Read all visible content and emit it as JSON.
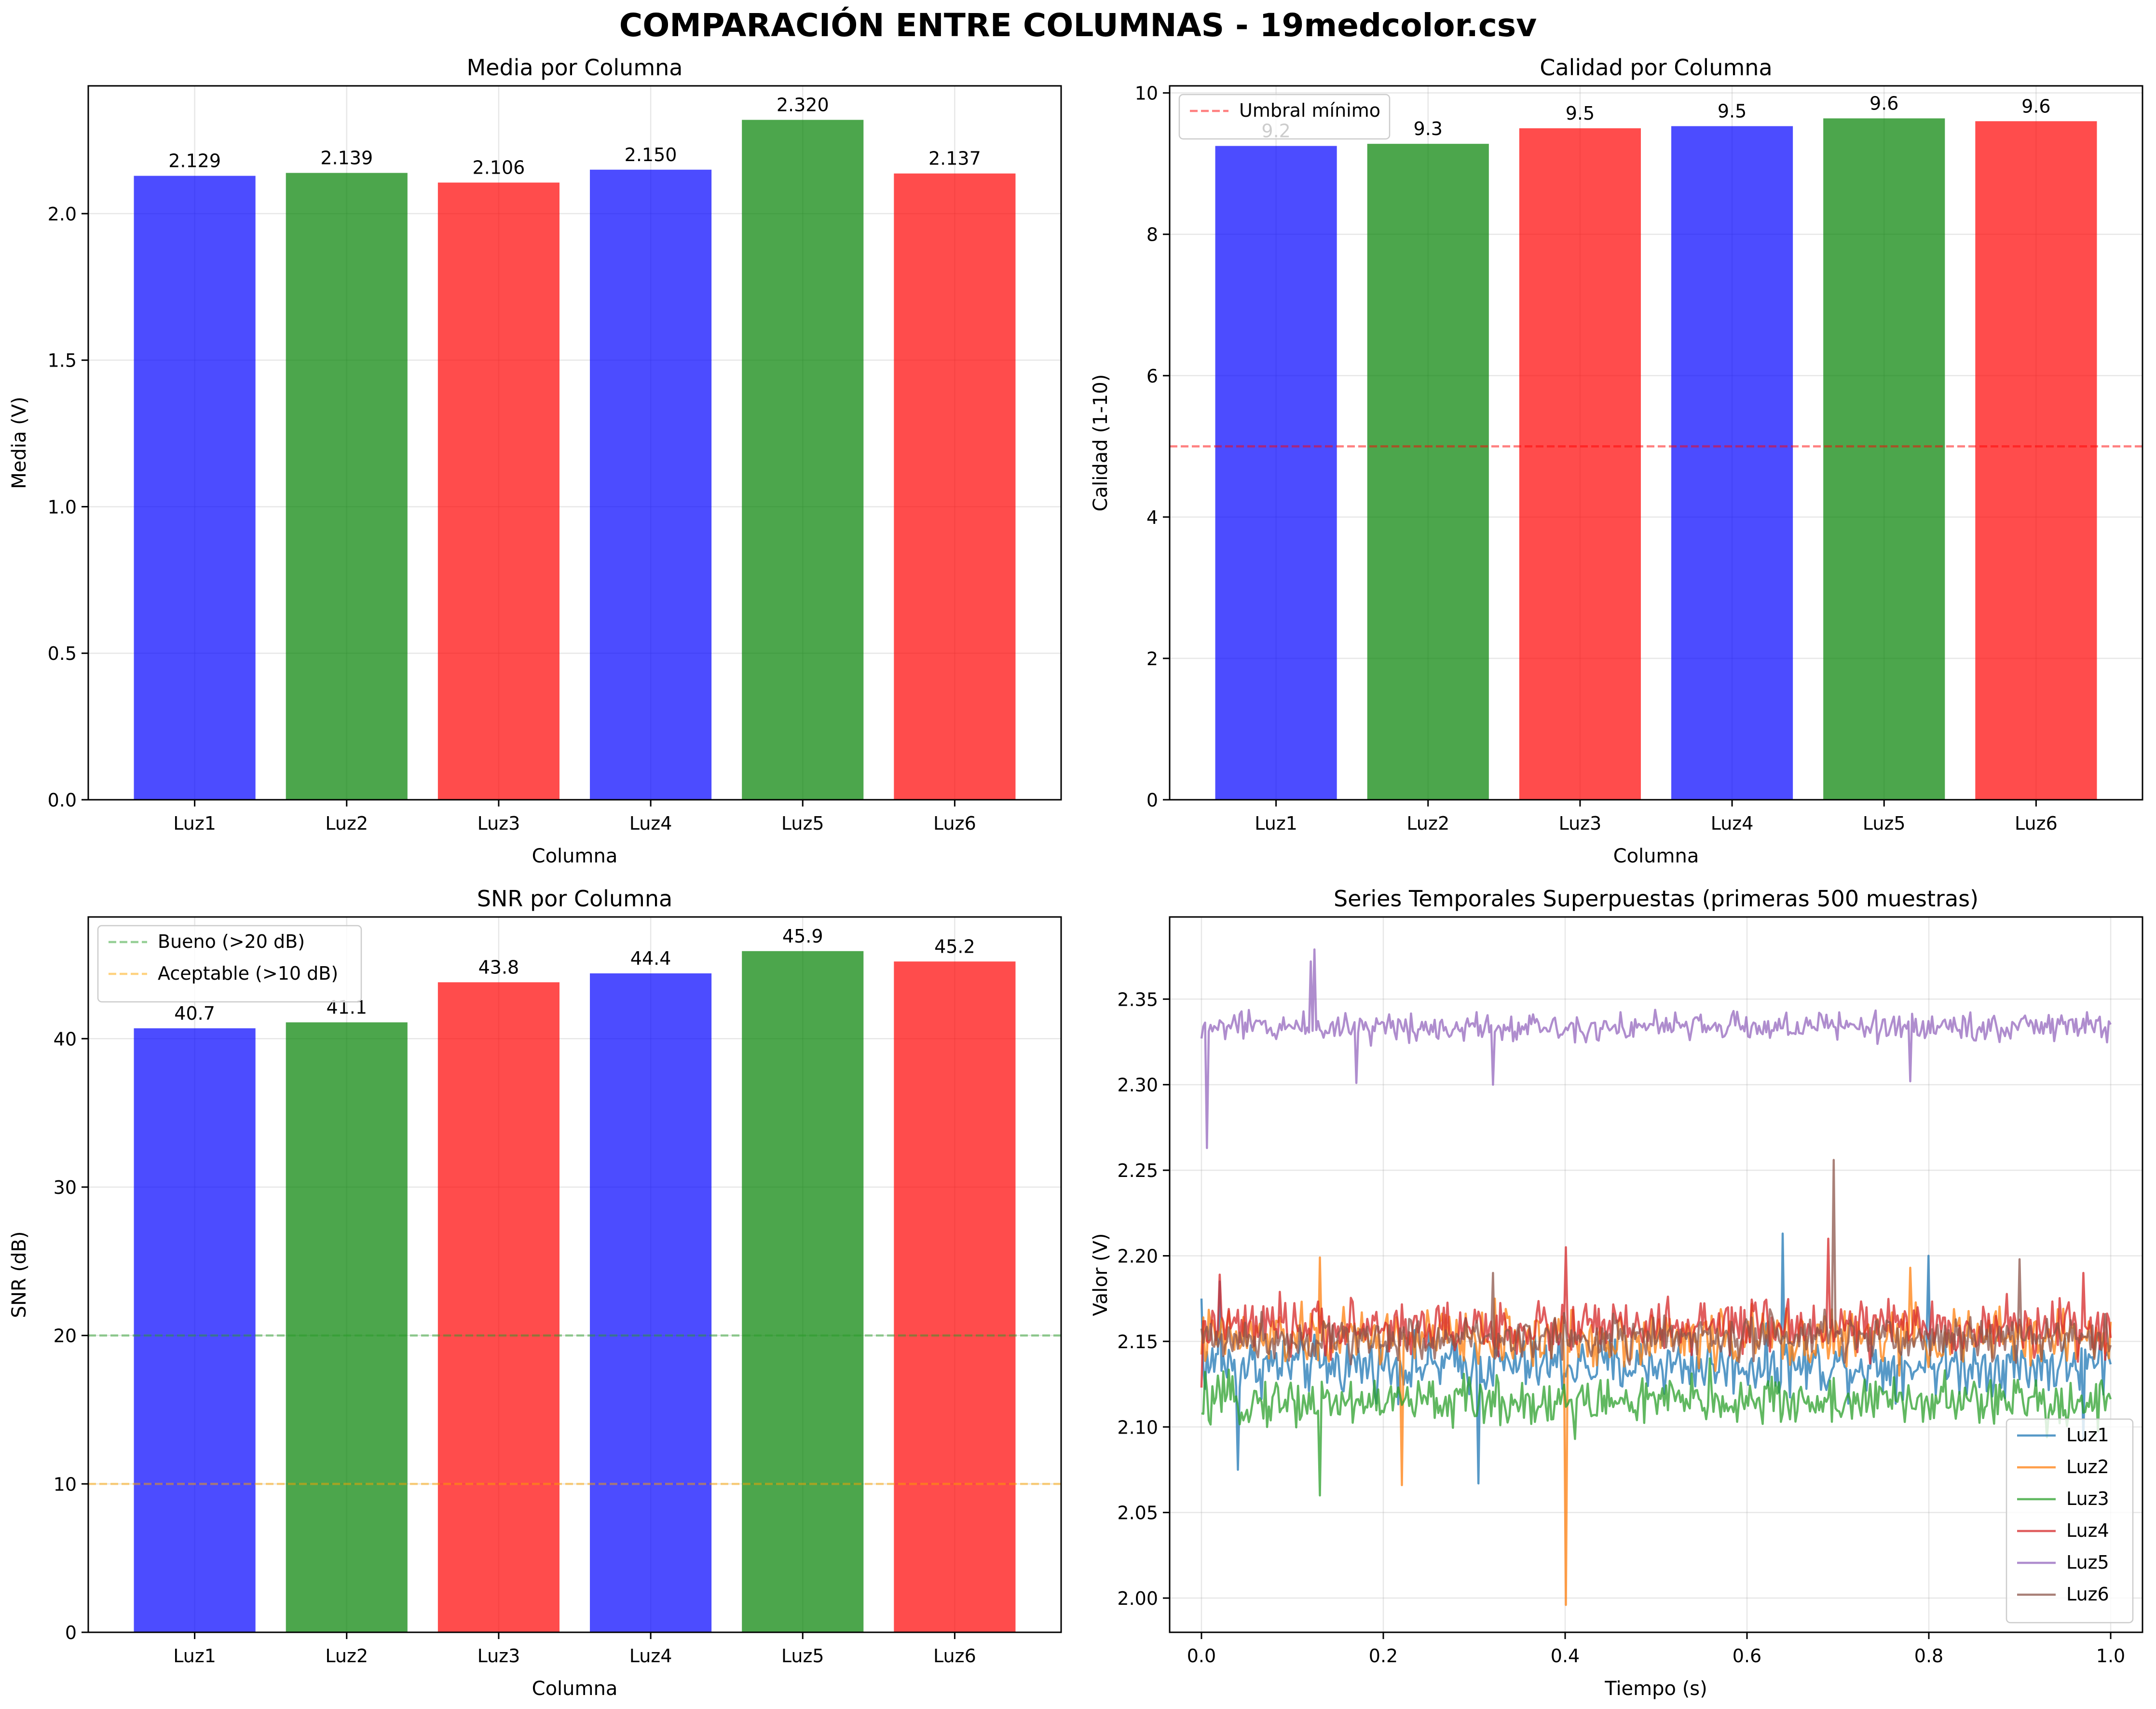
{
  "figure_title": "COMPARACIÓN ENTRE COLUMNAS - 19medcolor.csv",
  "colors": {
    "blue": "#0000ff",
    "green": "#008000",
    "red": "#ff0000",
    "ok": "#2ca02c",
    "warn": "#ffa500"
  },
  "chart_data": [
    {
      "type": "bar",
      "title": "Media por Columna",
      "xlabel": "Columna",
      "ylabel": "Media (V)",
      "categories": [
        "Luz1",
        "Luz2",
        "Luz3",
        "Luz4",
        "Luz5",
        "Luz6"
      ],
      "values": [
        2.129,
        2.139,
        2.106,
        2.15,
        2.32,
        2.137
      ],
      "value_labels": [
        "2.129",
        "2.139",
        "2.106",
        "2.150",
        "2.320",
        "2.137"
      ],
      "bar_colors": [
        "blue",
        "green",
        "red",
        "blue",
        "green",
        "red"
      ],
      "ylim": [
        0,
        2.436
      ],
      "yticks": [
        0.0,
        0.5,
        1.0,
        1.5,
        2.0
      ],
      "ytick_labels": [
        "0.0",
        "0.5",
        "1.0",
        "1.5",
        "2.0"
      ],
      "grid": true
    },
    {
      "type": "bar",
      "title": "Calidad por Columna",
      "xlabel": "Columna",
      "ylabel": "Calidad (1-10)",
      "categories": [
        "Luz1",
        "Luz2",
        "Luz3",
        "Luz4",
        "Luz5",
        "Luz6"
      ],
      "values": [
        9.25,
        9.28,
        9.5,
        9.53,
        9.64,
        9.6
      ],
      "value_labels": [
        "9.2",
        "9.3",
        "9.5",
        "9.5",
        "9.6",
        "9.6"
      ],
      "bar_colors": [
        "blue",
        "green",
        "red",
        "blue",
        "green",
        "red"
      ],
      "ylim": [
        0,
        10.1
      ],
      "yticks": [
        0,
        2,
        4,
        6,
        8,
        10
      ],
      "ytick_labels": [
        "0",
        "2",
        "4",
        "6",
        "8",
        "10"
      ],
      "hlines": [
        {
          "y": 5,
          "color": "red",
          "label": "Umbral mínimo"
        }
      ],
      "legend": "top-left",
      "grid": true
    },
    {
      "type": "bar",
      "title": "SNR por Columna",
      "xlabel": "Columna",
      "ylabel": "SNR (dB)",
      "categories": [
        "Luz1",
        "Luz2",
        "Luz3",
        "Luz4",
        "Luz5",
        "Luz6"
      ],
      "values": [
        40.7,
        41.1,
        43.8,
        44.4,
        45.9,
        45.2
      ],
      "value_labels": [
        "40.7",
        "41.1",
        "43.8",
        "44.4",
        "45.9",
        "45.2"
      ],
      "bar_colors": [
        "blue",
        "green",
        "red",
        "blue",
        "green",
        "red"
      ],
      "ylim": [
        0,
        48.2
      ],
      "yticks": [
        0,
        10,
        20,
        30,
        40
      ],
      "ytick_labels": [
        "0",
        "10",
        "20",
        "30",
        "40"
      ],
      "hlines": [
        {
          "y": 20,
          "color": "ok",
          "label": "Bueno (>20 dB)"
        },
        {
          "y": 10,
          "color": "warn",
          "label": "Aceptable (>10 dB)"
        }
      ],
      "legend": "top-left",
      "grid": true
    },
    {
      "type": "line",
      "title": "Series Temporales Superpuestas (primeras 500 muestras)",
      "xlabel": "Tiempo (s)",
      "ylabel": "Valor (V)",
      "xlim": [
        -0.035,
        1.035
      ],
      "ylim": [
        1.98,
        2.398
      ],
      "xticks": [
        0.0,
        0.2,
        0.4,
        0.6,
        0.8,
        1.0
      ],
      "xtick_labels": [
        "0.0",
        "0.2",
        "0.4",
        "0.6",
        "0.8",
        "1.0"
      ],
      "yticks": [
        2.0,
        2.05,
        2.1,
        2.15,
        2.2,
        2.25,
        2.3,
        2.35
      ],
      "ytick_labels": [
        "2.00",
        "2.05",
        "2.10",
        "2.15",
        "2.20",
        "2.25",
        "2.30",
        "2.35"
      ],
      "samples": 500,
      "legend": "bottom-right",
      "grid": true,
      "series": [
        {
          "name": "Luz1",
          "color": "#1f77b4",
          "mean": 2.136,
          "noise": 0.012,
          "spikes": [
            [
              0.001,
              2.175
            ],
            [
              0.02,
              2.185
            ],
            [
              0.04,
              2.075
            ],
            [
              0.305,
              2.067
            ],
            [
              0.64,
              2.213
            ],
            [
              0.8,
              2.2
            ],
            [
              0.97,
              2.092
            ]
          ]
        },
        {
          "name": "Luz2",
          "color": "#ff7f0e",
          "mean": 2.152,
          "noise": 0.012,
          "spikes": [
            [
              0.13,
              2.199
            ],
            [
              0.22,
              2.066
            ],
            [
              0.4,
              1.996
            ],
            [
              0.58,
              2.155
            ],
            [
              0.78,
              2.193
            ]
          ]
        },
        {
          "name": "Luz3",
          "color": "#2ca02c",
          "mean": 2.115,
          "noise": 0.01,
          "spikes": [
            [
              0.0,
              2.108
            ],
            [
              0.13,
              2.06
            ],
            [
              0.41,
              2.093
            ],
            [
              0.56,
              2.14
            ],
            [
              0.93,
              2.094
            ]
          ]
        },
        {
          "name": "Luz4",
          "color": "#d62728",
          "mean": 2.158,
          "noise": 0.011,
          "spikes": [
            [
              0.0,
              2.123
            ],
            [
              0.02,
              2.189
            ],
            [
              0.4,
              2.205
            ],
            [
              0.69,
              2.21
            ],
            [
              0.97,
              2.19
            ]
          ]
        },
        {
          "name": "Luz5",
          "color": "#9467bd",
          "mean": 2.334,
          "noise": 0.006,
          "spikes": [
            [
              0.0,
              2.327
            ],
            [
              0.006,
              2.263
            ],
            [
              0.125,
              2.379
            ],
            [
              0.12,
              2.372
            ],
            [
              0.17,
              2.301
            ],
            [
              0.32,
              2.3
            ],
            [
              0.78,
              2.302
            ]
          ]
        },
        {
          "name": "Luz6",
          "color": "#8c564b",
          "mean": 2.152,
          "noise": 0.009,
          "spikes": [
            [
              0.695,
              2.256
            ],
            [
              0.9,
              2.198
            ],
            [
              0.32,
              2.19
            ]
          ]
        }
      ]
    }
  ]
}
